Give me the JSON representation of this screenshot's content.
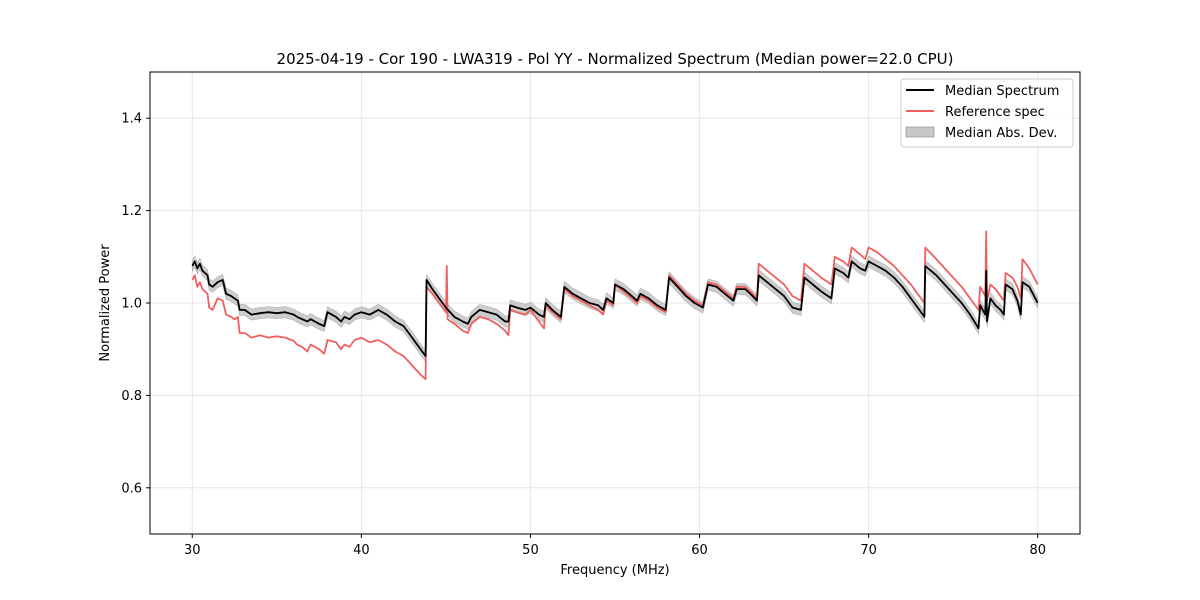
{
  "chart_data": {
    "type": "line",
    "title": "2025-04-19 - Cor 190 - LWA319 - Pol YY - Normalized Spectrum (Median power=22.0 CPU)",
    "xlabel": "Frequency (MHz)",
    "ylabel": "Normalized Power",
    "xlim": [
      27.5,
      82.5
    ],
    "ylim": [
      0.5,
      1.5
    ],
    "xticks": [
      30,
      40,
      50,
      60,
      70,
      80
    ],
    "yticks": [
      0.6,
      0.8,
      1.0,
      1.2,
      1.4
    ],
    "xtick_labels": [
      "30",
      "40",
      "50",
      "60",
      "70",
      "80"
    ],
    "ytick_labels": [
      "0.6",
      "0.8",
      "1.0",
      "1.2",
      "1.4"
    ],
    "grid": true,
    "legend_position": "top-right",
    "series": [
      {
        "name": "Median Spectrum",
        "color": "#000000",
        "points": [
          [
            30.0,
            1.08
          ],
          [
            30.15,
            1.09
          ],
          [
            30.3,
            1.075
          ],
          [
            30.45,
            1.085
          ],
          [
            30.6,
            1.07
          ],
          [
            30.75,
            1.065
          ],
          [
            30.9,
            1.06
          ],
          [
            31.0,
            1.04
          ],
          [
            31.2,
            1.035
          ],
          [
            31.5,
            1.045
          ],
          [
            31.8,
            1.05
          ],
          [
            32.0,
            1.02
          ],
          [
            32.3,
            1.015
          ],
          [
            32.5,
            1.01
          ],
          [
            32.7,
            1.005
          ],
          [
            32.8,
            0.985
          ],
          [
            33.1,
            0.985
          ],
          [
            33.5,
            0.975
          ],
          [
            34.0,
            0.978
          ],
          [
            34.5,
            0.98
          ],
          [
            35.0,
            0.978
          ],
          [
            35.5,
            0.98
          ],
          [
            36.0,
            0.975
          ],
          [
            36.2,
            0.97
          ],
          [
            36.5,
            0.965
          ],
          [
            36.8,
            0.96
          ],
          [
            37.0,
            0.965
          ],
          [
            37.5,
            0.955
          ],
          [
            37.8,
            0.95
          ],
          [
            38.0,
            0.98
          ],
          [
            38.5,
            0.97
          ],
          [
            38.8,
            0.96
          ],
          [
            39.0,
            0.97
          ],
          [
            39.3,
            0.965
          ],
          [
            39.6,
            0.975
          ],
          [
            40.0,
            0.98
          ],
          [
            40.5,
            0.975
          ],
          [
            41.0,
            0.985
          ],
          [
            41.5,
            0.975
          ],
          [
            42.0,
            0.96
          ],
          [
            42.5,
            0.95
          ],
          [
            43.0,
            0.925
          ],
          [
            43.5,
            0.9
          ],
          [
            43.8,
            0.885
          ],
          [
            43.85,
            1.05
          ],
          [
            44.2,
            1.03
          ],
          [
            44.6,
            1.01
          ],
          [
            45.0,
            0.99
          ],
          [
            45.5,
            0.97
          ],
          [
            46.0,
            0.96
          ],
          [
            46.3,
            0.955
          ],
          [
            46.5,
            0.97
          ],
          [
            47.0,
            0.985
          ],
          [
            47.5,
            0.98
          ],
          [
            48.0,
            0.975
          ],
          [
            48.5,
            0.96
          ],
          [
            48.7,
            0.96
          ],
          [
            48.8,
            0.995
          ],
          [
            49.2,
            0.99
          ],
          [
            49.7,
            0.985
          ],
          [
            50.0,
            0.99
          ],
          [
            50.5,
            0.975
          ],
          [
            50.8,
            0.97
          ],
          [
            50.9,
            1.0
          ],
          [
            51.3,
            0.985
          ],
          [
            51.8,
            0.97
          ],
          [
            52.0,
            1.035
          ],
          [
            52.5,
            1.02
          ],
          [
            53.0,
            1.01
          ],
          [
            53.5,
            1.0
          ],
          [
            54.0,
            0.995
          ],
          [
            54.3,
            0.985
          ],
          [
            54.5,
            1.01
          ],
          [
            54.9,
            1.0
          ],
          [
            55.0,
            1.04
          ],
          [
            55.5,
            1.03
          ],
          [
            56.0,
            1.015
          ],
          [
            56.3,
            1.005
          ],
          [
            56.5,
            1.02
          ],
          [
            57.0,
            1.01
          ],
          [
            57.5,
            0.995
          ],
          [
            58.0,
            0.985
          ],
          [
            58.2,
            1.055
          ],
          [
            58.7,
            1.035
          ],
          [
            59.2,
            1.015
          ],
          [
            59.7,
            1.0
          ],
          [
            60.2,
            0.99
          ],
          [
            60.5,
            1.04
          ],
          [
            61.0,
            1.035
          ],
          [
            61.5,
            1.02
          ],
          [
            62.0,
            1.005
          ],
          [
            62.2,
            1.03
          ],
          [
            62.7,
            1.03
          ],
          [
            63.0,
            1.02
          ],
          [
            63.4,
            1.005
          ],
          [
            63.5,
            1.06
          ],
          [
            64.0,
            1.045
          ],
          [
            64.5,
            1.03
          ],
          [
            65.0,
            1.015
          ],
          [
            65.5,
            0.99
          ],
          [
            66.0,
            0.985
          ],
          [
            66.2,
            1.055
          ],
          [
            66.7,
            1.04
          ],
          [
            67.2,
            1.025
          ],
          [
            67.8,
            1.01
          ],
          [
            68.0,
            1.075
          ],
          [
            68.5,
            1.065
          ],
          [
            68.8,
            1.055
          ],
          [
            69.0,
            1.09
          ],
          [
            69.5,
            1.075
          ],
          [
            69.8,
            1.07
          ],
          [
            70.0,
            1.09
          ],
          [
            70.5,
            1.08
          ],
          [
            71.0,
            1.07
          ],
          [
            71.5,
            1.055
          ],
          [
            72.0,
            1.035
          ],
          [
            72.5,
            1.01
          ],
          [
            73.0,
            0.985
          ],
          [
            73.3,
            0.97
          ],
          [
            73.35,
            1.08
          ],
          [
            74.0,
            1.06
          ],
          [
            74.5,
            1.04
          ],
          [
            75.0,
            1.02
          ],
          [
            75.5,
            1.0
          ],
          [
            76.0,
            0.975
          ],
          [
            76.5,
            0.945
          ],
          [
            76.6,
            0.995
          ],
          [
            76.9,
            0.975
          ],
          [
            76.95,
            1.07
          ],
          [
            77.0,
            0.96
          ],
          [
            77.2,
            1.01
          ],
          [
            77.5,
            0.995
          ],
          [
            77.8,
            0.985
          ],
          [
            78.0,
            0.975
          ],
          [
            78.1,
            1.04
          ],
          [
            78.5,
            1.03
          ],
          [
            78.8,
            1.005
          ],
          [
            79.0,
            0.975
          ],
          [
            79.1,
            1.045
          ],
          [
            79.5,
            1.035
          ],
          [
            80.0,
            1.0
          ]
        ]
      },
      {
        "name": "Reference spec",
        "color": "#f06060",
        "points": [
          [
            30.0,
            1.05
          ],
          [
            30.15,
            1.06
          ],
          [
            30.3,
            1.035
          ],
          [
            30.45,
            1.045
          ],
          [
            30.6,
            1.03
          ],
          [
            30.75,
            1.025
          ],
          [
            30.9,
            1.02
          ],
          [
            31.0,
            0.99
          ],
          [
            31.2,
            0.985
          ],
          [
            31.5,
            1.01
          ],
          [
            31.8,
            1.005
          ],
          [
            32.0,
            0.975
          ],
          [
            32.3,
            0.97
          ],
          [
            32.5,
            0.965
          ],
          [
            32.7,
            0.97
          ],
          [
            32.8,
            0.935
          ],
          [
            33.1,
            0.935
          ],
          [
            33.5,
            0.925
          ],
          [
            34.0,
            0.93
          ],
          [
            34.5,
            0.925
          ],
          [
            35.0,
            0.928
          ],
          [
            35.5,
            0.925
          ],
          [
            36.0,
            0.918
          ],
          [
            36.2,
            0.91
          ],
          [
            36.5,
            0.905
          ],
          [
            36.8,
            0.895
          ],
          [
            37.0,
            0.91
          ],
          [
            37.5,
            0.9
          ],
          [
            37.8,
            0.89
          ],
          [
            38.0,
            0.92
          ],
          [
            38.5,
            0.915
          ],
          [
            38.8,
            0.9
          ],
          [
            39.0,
            0.91
          ],
          [
            39.3,
            0.905
          ],
          [
            39.6,
            0.92
          ],
          [
            40.0,
            0.925
          ],
          [
            40.5,
            0.915
          ],
          [
            41.0,
            0.92
          ],
          [
            41.5,
            0.91
          ],
          [
            42.0,
            0.895
          ],
          [
            42.5,
            0.885
          ],
          [
            43.0,
            0.865
          ],
          [
            43.5,
            0.845
          ],
          [
            43.8,
            0.835
          ],
          [
            43.85,
            1.035
          ],
          [
            44.2,
            1.02
          ],
          [
            44.6,
            1.0
          ],
          [
            45.0,
            0.98
          ],
          [
            45.05,
            1.08
          ],
          [
            45.1,
            0.965
          ],
          [
            45.5,
            0.955
          ],
          [
            46.0,
            0.94
          ],
          [
            46.3,
            0.935
          ],
          [
            46.5,
            0.955
          ],
          [
            47.0,
            0.97
          ],
          [
            47.5,
            0.965
          ],
          [
            48.0,
            0.955
          ],
          [
            48.5,
            0.94
          ],
          [
            48.7,
            0.93
          ],
          [
            48.8,
            0.985
          ],
          [
            49.2,
            0.98
          ],
          [
            49.7,
            0.975
          ],
          [
            50.0,
            0.985
          ],
          [
            50.5,
            0.96
          ],
          [
            50.8,
            0.945
          ],
          [
            50.9,
            0.995
          ],
          [
            51.3,
            0.98
          ],
          [
            51.8,
            0.965
          ],
          [
            52.0,
            1.03
          ],
          [
            52.5,
            1.015
          ],
          [
            53.0,
            1.005
          ],
          [
            53.5,
            0.995
          ],
          [
            54.0,
            0.985
          ],
          [
            54.3,
            0.975
          ],
          [
            54.5,
            1.005
          ],
          [
            54.9,
            0.995
          ],
          [
            55.0,
            1.04
          ],
          [
            55.5,
            1.025
          ],
          [
            56.0,
            1.01
          ],
          [
            56.3,
            1.0
          ],
          [
            56.5,
            1.015
          ],
          [
            57.0,
            1.005
          ],
          [
            57.5,
            0.99
          ],
          [
            58.0,
            0.98
          ],
          [
            58.2,
            1.06
          ],
          [
            58.7,
            1.04
          ],
          [
            59.2,
            1.02
          ],
          [
            59.7,
            1.005
          ],
          [
            60.2,
            0.995
          ],
          [
            60.5,
            1.045
          ],
          [
            61.0,
            1.04
          ],
          [
            61.5,
            1.025
          ],
          [
            62.0,
            1.01
          ],
          [
            62.2,
            1.035
          ],
          [
            62.7,
            1.035
          ],
          [
            63.0,
            1.025
          ],
          [
            63.4,
            1.01
          ],
          [
            63.5,
            1.085
          ],
          [
            64.0,
            1.07
          ],
          [
            64.5,
            1.055
          ],
          [
            65.0,
            1.04
          ],
          [
            65.5,
            1.015
          ],
          [
            66.0,
            1.005
          ],
          [
            66.2,
            1.085
          ],
          [
            66.7,
            1.07
          ],
          [
            67.2,
            1.055
          ],
          [
            67.8,
            1.04
          ],
          [
            68.0,
            1.1
          ],
          [
            68.5,
            1.09
          ],
          [
            68.8,
            1.08
          ],
          [
            69.0,
            1.12
          ],
          [
            69.5,
            1.105
          ],
          [
            69.8,
            1.095
          ],
          [
            70.0,
            1.12
          ],
          [
            70.5,
            1.11
          ],
          [
            71.0,
            1.095
          ],
          [
            71.5,
            1.08
          ],
          [
            72.0,
            1.06
          ],
          [
            72.5,
            1.04
          ],
          [
            73.0,
            1.015
          ],
          [
            73.3,
            1.0
          ],
          [
            73.35,
            1.12
          ],
          [
            74.0,
            1.095
          ],
          [
            74.5,
            1.075
          ],
          [
            75.0,
            1.055
          ],
          [
            75.5,
            1.035
          ],
          [
            76.0,
            1.01
          ],
          [
            76.5,
            0.985
          ],
          [
            76.6,
            1.035
          ],
          [
            76.9,
            1.015
          ],
          [
            76.95,
            1.155
          ],
          [
            77.0,
            1.005
          ],
          [
            77.2,
            1.04
          ],
          [
            77.5,
            1.03
          ],
          [
            77.8,
            1.015
          ],
          [
            78.0,
            1.005
          ],
          [
            78.1,
            1.065
          ],
          [
            78.5,
            1.055
          ],
          [
            78.8,
            1.035
          ],
          [
            79.0,
            1.01
          ],
          [
            79.1,
            1.095
          ],
          [
            79.5,
            1.075
          ],
          [
            80.0,
            1.04
          ]
        ]
      },
      {
        "name": "Median Abs. Dev.",
        "color": "#c8c8c8",
        "kind": "band",
        "band_halfwidth": 0.012
      }
    ]
  }
}
